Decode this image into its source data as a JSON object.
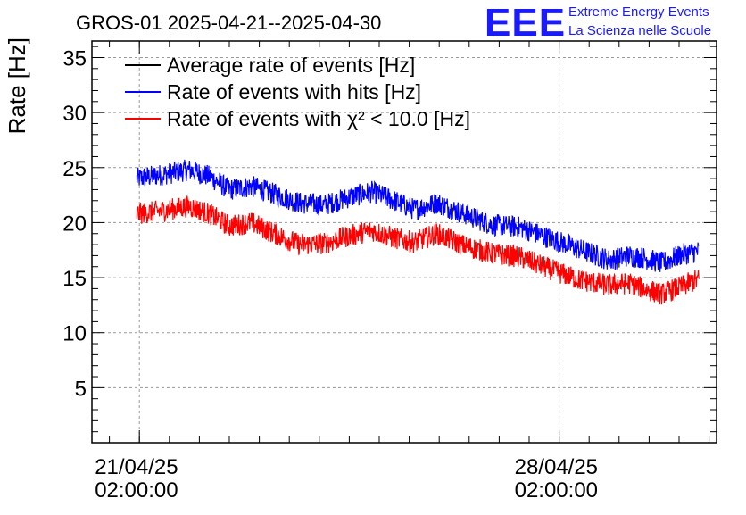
{
  "title": "GROS-01 2025-04-21--2025-04-30",
  "brand": {
    "logo_text": "EEE",
    "line1": "Extreme Energy Events",
    "line2": "La Scienza nelle Scuole",
    "color": "#1a1aff"
  },
  "chart_data": {
    "type": "line",
    "title": "GROS-01 2025-04-21--2025-04-30",
    "ylabel": "Rate [Hz]",
    "xlabel": "",
    "ylim": [
      0,
      36.5
    ],
    "yticks_major": [
      5,
      10,
      15,
      20,
      25,
      30,
      35
    ],
    "yticks_minor_step": 1,
    "xlim": [
      "2025-04-20T07:00:00",
      "2025-04-30T17:00:00"
    ],
    "xticks": [
      {
        "date": "21/04/25",
        "time": "02:00:00",
        "value": "2025-04-21T02:00:00"
      },
      {
        "date": "28/04/25",
        "time": "02:00:00",
        "value": "2025-04-28T02:00:00"
      }
    ],
    "grid": true,
    "legend_position": "top-left",
    "legend": [
      {
        "label": "Average rate of events [Hz]",
        "color": "#000000"
      },
      {
        "label": "Rate of events with hits [Hz]",
        "color": "#0000ff"
      },
      {
        "label": "Rate of events with χ² < 10.0 [Hz]",
        "color": "#ff0000"
      }
    ],
    "series": [
      {
        "name": "Rate of events with hits [Hz]",
        "color": "#0000ff",
        "noise": 1.0,
        "points": [
          {
            "x": "2025-04-21T01:00:00",
            "y": 24.0
          },
          {
            "x": "2025-04-21T12:00:00",
            "y": 24.4
          },
          {
            "x": "2025-04-21T22:00:00",
            "y": 24.8
          },
          {
            "x": "2025-04-22T06:00:00",
            "y": 24.2
          },
          {
            "x": "2025-04-22T14:00:00",
            "y": 23.0
          },
          {
            "x": "2025-04-22T23:00:00",
            "y": 23.3
          },
          {
            "x": "2025-04-23T08:00:00",
            "y": 22.6
          },
          {
            "x": "2025-04-23T18:00:00",
            "y": 21.8
          },
          {
            "x": "2025-04-24T04:00:00",
            "y": 21.6
          },
          {
            "x": "2025-04-24T14:00:00",
            "y": 22.3
          },
          {
            "x": "2025-04-24T23:00:00",
            "y": 22.8
          },
          {
            "x": "2025-04-25T08:00:00",
            "y": 22.0
          },
          {
            "x": "2025-04-25T16:00:00",
            "y": 21.2
          },
          {
            "x": "2025-04-26T01:00:00",
            "y": 21.8
          },
          {
            "x": "2025-04-26T12:00:00",
            "y": 20.8
          },
          {
            "x": "2025-04-26T23:00:00",
            "y": 19.8
          },
          {
            "x": "2025-04-27T10:00:00",
            "y": 19.6
          },
          {
            "x": "2025-04-27T22:00:00",
            "y": 18.6
          },
          {
            "x": "2025-04-28T10:00:00",
            "y": 17.6
          },
          {
            "x": "2025-04-28T22:00:00",
            "y": 16.6
          },
          {
            "x": "2025-04-29T06:00:00",
            "y": 17.0
          },
          {
            "x": "2025-04-29T12:00:00",
            "y": 16.8
          },
          {
            "x": "2025-04-29T19:00:00",
            "y": 16.3
          },
          {
            "x": "2025-04-30T03:00:00",
            "y": 17.1
          },
          {
            "x": "2025-04-30T10:00:00",
            "y": 17.4
          }
        ]
      },
      {
        "name": "Rate of events with χ² < 10.0 [Hz]",
        "color": "#ff0000",
        "noise": 1.0,
        "points": [
          {
            "x": "2025-04-21T01:00:00",
            "y": 20.8
          },
          {
            "x": "2025-04-21T12:00:00",
            "y": 21.1
          },
          {
            "x": "2025-04-21T22:00:00",
            "y": 21.5
          },
          {
            "x": "2025-04-22T06:00:00",
            "y": 20.8
          },
          {
            "x": "2025-04-22T14:00:00",
            "y": 19.7
          },
          {
            "x": "2025-04-22T23:00:00",
            "y": 20.0
          },
          {
            "x": "2025-04-23T08:00:00",
            "y": 19.0
          },
          {
            "x": "2025-04-23T18:00:00",
            "y": 18.0
          },
          {
            "x": "2025-04-24T04:00:00",
            "y": 18.1
          },
          {
            "x": "2025-04-24T14:00:00",
            "y": 18.8
          },
          {
            "x": "2025-04-24T23:00:00",
            "y": 19.3
          },
          {
            "x": "2025-04-25T08:00:00",
            "y": 18.6
          },
          {
            "x": "2025-04-25T16:00:00",
            "y": 18.2
          },
          {
            "x": "2025-04-26T01:00:00",
            "y": 19.0
          },
          {
            "x": "2025-04-26T12:00:00",
            "y": 17.9
          },
          {
            "x": "2025-04-26T23:00:00",
            "y": 17.2
          },
          {
            "x": "2025-04-27T10:00:00",
            "y": 16.9
          },
          {
            "x": "2025-04-27T22:00:00",
            "y": 15.8
          },
          {
            "x": "2025-04-28T10:00:00",
            "y": 14.8
          },
          {
            "x": "2025-04-28T22:00:00",
            "y": 14.3
          },
          {
            "x": "2025-04-29T06:00:00",
            "y": 14.5
          },
          {
            "x": "2025-04-29T12:00:00",
            "y": 14.0
          },
          {
            "x": "2025-04-29T19:00:00",
            "y": 13.5
          },
          {
            "x": "2025-04-30T03:00:00",
            "y": 14.2
          },
          {
            "x": "2025-04-30T10:00:00",
            "y": 14.9
          }
        ]
      }
    ]
  }
}
